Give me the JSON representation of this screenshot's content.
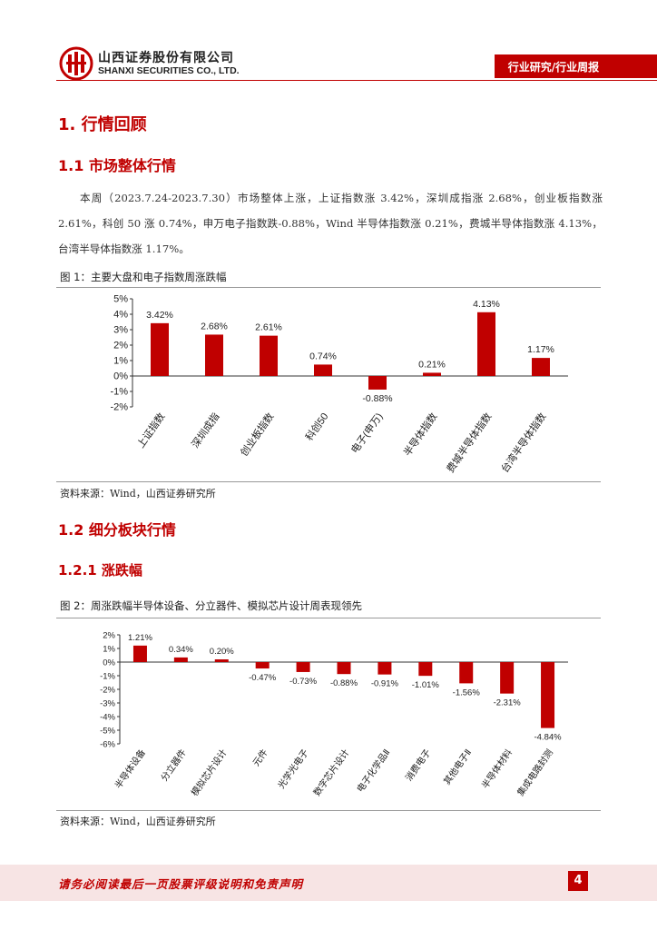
{
  "header": {
    "company_cn": "山西证券股份有限公司",
    "company_en": "SHANXI SECURITIES CO., LTD.",
    "doc_type": "行业研究/行业周报",
    "brand_color": "#c00000"
  },
  "section1": {
    "title": "1. 行情回顾"
  },
  "section1_1": {
    "title": "1.1  市场整体行情",
    "paragraph": "本周（2023.7.24-2023.7.30）市场整体上涨，上证指数涨 3.42%，深圳成指涨 2.68%，创业板指数涨 2.61%，科创 50 涨 0.74%，申万电子指数跌-0.88%，Wind 半导体指数涨 0.21%，费城半导体指数涨 4.13%，台湾半导体指数涨 1.17%。"
  },
  "figure1": {
    "title": "图 1：主要大盘和电子指数周涨跌幅",
    "source": "资料来源：Wind，山西证券研究所"
  },
  "section1_2": {
    "title": "1.2  细分板块行情"
  },
  "section1_2_1": {
    "title": "1.2.1  涨跌幅"
  },
  "figure2": {
    "title": "图 2：周涨跌幅半导体设备、分立器件、模拟芯片设计周表现领先",
    "source": "资料来源：Wind，山西证券研究所"
  },
  "footer": {
    "disclaimer": "请务必阅读最后一页股票评级说明和免责声明",
    "page": "4"
  },
  "chart_data": [
    {
      "type": "bar",
      "categories": [
        "上证指数",
        "深圳成指",
        "创业板指数",
        "科创50",
        "电子(申万)",
        "半导体指数",
        "费城半导体指数",
        "台湾半导体指数"
      ],
      "values": [
        3.42,
        2.68,
        2.61,
        0.74,
        -0.88,
        0.21,
        4.13,
        1.17
      ],
      "value_labels": [
        "3.42%",
        "2.68%",
        "2.61%",
        "0.74%",
        "-0.88%",
        "0.21%",
        "4.13%",
        "1.17%"
      ],
      "yticks": [
        "5%",
        "4%",
        "3%",
        "2%",
        "1%",
        "0%",
        "-1%",
        "-2%"
      ],
      "ylim": [
        -2,
        5
      ],
      "bar_color": "#c00000"
    },
    {
      "type": "bar",
      "categories": [
        "半导体设备",
        "分立器件",
        "模拟芯片设计",
        "元件",
        "光学光电子",
        "数字芯片设计",
        "电子化学品Ⅱ",
        "消费电子",
        "其他电子Ⅱ",
        "半导体材料",
        "集成电路封测"
      ],
      "values": [
        1.21,
        0.34,
        0.2,
        -0.47,
        -0.73,
        -0.88,
        -0.91,
        -1.01,
        -1.56,
        -2.31,
        -4.84
      ],
      "value_labels": [
        "1.21%",
        "0.34%",
        "0.20%",
        "-0.47%",
        "-0.73%",
        "-0.88%",
        "-0.91%",
        "-1.01%",
        "-1.56%",
        "-2.31%",
        "-4.84%"
      ],
      "yticks": [
        "2%",
        "1%",
        "0%",
        "-1%",
        "-2%",
        "-3%",
        "-4%",
        "-5%",
        "-6%"
      ],
      "ylim": [
        -6,
        2
      ],
      "bar_color": "#c00000"
    }
  ]
}
